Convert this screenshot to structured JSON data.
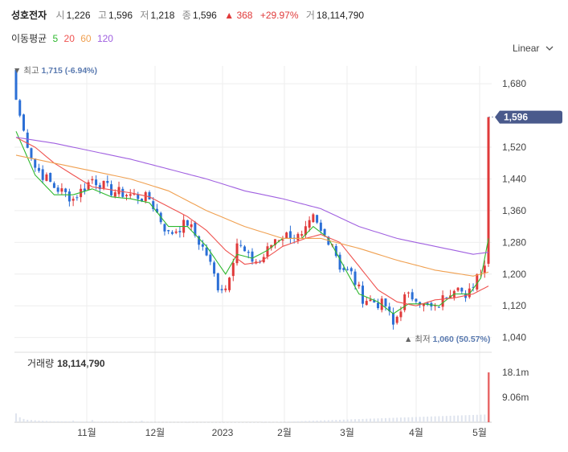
{
  "header": {
    "name": "성호전자",
    "open_label": "시",
    "open": "1,226",
    "high_label": "고",
    "high": "1,596",
    "low_label": "저",
    "low": "1,218",
    "close_label": "종",
    "close": "1,596",
    "change_arrow": "▲",
    "change": "368",
    "change_pct": "+29.97%",
    "volume_label": "거",
    "volume": "18,114,790"
  },
  "ma_legend": {
    "label": "이동평균",
    "items": [
      {
        "period": "5",
        "color": "#2eb82e"
      },
      {
        "period": "20",
        "color": "#ef5350"
      },
      {
        "period": "60",
        "color": "#f0a050"
      },
      {
        "period": "120",
        "color": "#a060e0"
      }
    ]
  },
  "scale_toggle": {
    "label": "Linear",
    "icon": "chevron-down-icon"
  },
  "colors": {
    "up": "#e03a3a",
    "down": "#2b6fd6",
    "price_tag": "#4a5a8c",
    "grid": "#eeeeee"
  },
  "chart_data": {
    "type": "candlestick",
    "y_axis": {
      "ticks": [
        1040,
        1120,
        1200,
        1280,
        1360,
        1440,
        1520,
        1600,
        1680
      ],
      "tick_labels": [
        "1,040",
        "1,120",
        "1,200",
        "1,280",
        "1,360",
        "1,440",
        "1,520",
        "1,600",
        "1,680"
      ],
      "range": [
        1040,
        1715
      ]
    },
    "x_axis": {
      "ticks": [
        "11월",
        "12월",
        "2023",
        "2월",
        "3월",
        "4월",
        "5월"
      ]
    },
    "last_price": {
      "value": 1596,
      "label": "1,596"
    },
    "high_marker": {
      "label": "최고",
      "value": "1,715",
      "pct": "(-6.94%)"
    },
    "low_marker": {
      "label": "최저",
      "value": "1,060",
      "pct": "(50.57%)"
    },
    "close_anchors": [
      [
        0,
        1640
      ],
      [
        2,
        1560
      ],
      [
        5,
        1470
      ],
      [
        10,
        1420
      ],
      [
        15,
        1390
      ],
      [
        20,
        1440
      ],
      [
        25,
        1410
      ],
      [
        30,
        1400
      ],
      [
        35,
        1390
      ],
      [
        40,
        1300
      ],
      [
        45,
        1330
      ],
      [
        50,
        1250
      ],
      [
        53,
        1170
      ],
      [
        55,
        1165
      ],
      [
        58,
        1280
      ],
      [
        61,
        1240
      ],
      [
        64,
        1230
      ],
      [
        68,
        1290
      ],
      [
        72,
        1300
      ],
      [
        75,
        1290
      ],
      [
        78,
        1340
      ],
      [
        80,
        1305
      ],
      [
        83,
        1280
      ],
      [
        85,
        1220
      ],
      [
        88,
        1200
      ],
      [
        91,
        1140
      ],
      [
        94,
        1130
      ],
      [
        97,
        1120
      ],
      [
        99,
        1070
      ],
      [
        102,
        1140
      ],
      [
        105,
        1145
      ],
      [
        107,
        1120
      ],
      [
        110,
        1110
      ],
      [
        113,
        1150
      ],
      [
        116,
        1180
      ],
      [
        118,
        1130
      ],
      [
        121,
        1200
      ],
      [
        123,
        1228
      ],
      [
        124,
        1596
      ]
    ],
    "ma_lines": [
      {
        "period": "5",
        "points": [
          [
            0,
            1560
          ],
          [
            5,
            1450
          ],
          [
            10,
            1400
          ],
          [
            15,
            1400
          ],
          [
            20,
            1415
          ],
          [
            25,
            1395
          ],
          [
            30,
            1390
          ],
          [
            35,
            1380
          ],
          [
            40,
            1320
          ],
          [
            45,
            1320
          ],
          [
            50,
            1270
          ],
          [
            55,
            1200
          ],
          [
            58,
            1250
          ],
          [
            62,
            1240
          ],
          [
            66,
            1260
          ],
          [
            70,
            1290
          ],
          [
            75,
            1290
          ],
          [
            78,
            1320
          ],
          [
            82,
            1290
          ],
          [
            86,
            1220
          ],
          [
            90,
            1150
          ],
          [
            95,
            1130
          ],
          [
            99,
            1100
          ],
          [
            103,
            1125
          ],
          [
            107,
            1125
          ],
          [
            111,
            1120
          ],
          [
            115,
            1150
          ],
          [
            119,
            1150
          ],
          [
            122,
            1190
          ],
          [
            124,
            1290
          ]
        ]
      },
      {
        "period": "20",
        "points": [
          [
            0,
            1545
          ],
          [
            5,
            1520
          ],
          [
            10,
            1480
          ],
          [
            15,
            1450
          ],
          [
            20,
            1420
          ],
          [
            30,
            1405
          ],
          [
            35,
            1395
          ],
          [
            40,
            1370
          ],
          [
            45,
            1345
          ],
          [
            50,
            1310
          ],
          [
            55,
            1260
          ],
          [
            60,
            1225
          ],
          [
            64,
            1230
          ],
          [
            70,
            1270
          ],
          [
            76,
            1290
          ],
          [
            80,
            1300
          ],
          [
            85,
            1280
          ],
          [
            90,
            1220
          ],
          [
            95,
            1160
          ],
          [
            100,
            1130
          ],
          [
            105,
            1120
          ],
          [
            110,
            1135
          ],
          [
            115,
            1140
          ],
          [
            120,
            1150
          ],
          [
            124,
            1170
          ]
        ]
      },
      {
        "period": "60",
        "points": [
          [
            0,
            1500
          ],
          [
            10,
            1480
          ],
          [
            20,
            1460
          ],
          [
            30,
            1440
          ],
          [
            40,
            1410
          ],
          [
            50,
            1360
          ],
          [
            60,
            1320
          ],
          [
            70,
            1290
          ],
          [
            80,
            1290
          ],
          [
            90,
            1265
          ],
          [
            100,
            1235
          ],
          [
            110,
            1210
          ],
          [
            120,
            1195
          ],
          [
            124,
            1205
          ]
        ]
      },
      {
        "period": "120",
        "points": [
          [
            0,
            1545
          ],
          [
            10,
            1530
          ],
          [
            20,
            1510
          ],
          [
            30,
            1490
          ],
          [
            40,
            1465
          ],
          [
            50,
            1440
          ],
          [
            60,
            1410
          ],
          [
            70,
            1390
          ],
          [
            80,
            1365
          ],
          [
            90,
            1320
          ],
          [
            100,
            1290
          ],
          [
            110,
            1270
          ],
          [
            120,
            1250
          ],
          [
            124,
            1255
          ]
        ]
      }
    ],
    "volume": {
      "title": "거래량",
      "latest": "18,114,790",
      "ticks": [
        {
          "label": "18.1m",
          "value": 18114790
        },
        {
          "label": "9.06m",
          "value": 9057395
        }
      ],
      "values": [
        3200000,
        1800000,
        1200000,
        900000,
        800000,
        700000,
        600000,
        500000,
        450000,
        400000,
        380000,
        360000,
        340000,
        320000,
        300000,
        600000,
        280000,
        260000,
        250000,
        240000,
        800000,
        230000,
        220000,
        210000,
        200000,
        190000,
        180000,
        170000,
        160000,
        150000,
        300000,
        140000,
        130000,
        600000,
        120000,
        110000,
        100000,
        95000,
        90000,
        85000,
        80000,
        75000,
        70000,
        65000,
        60000,
        200000,
        55000,
        50000,
        45000,
        40000,
        38000,
        36000,
        34000,
        32000,
        30000,
        28000,
        26000,
        24000,
        22000,
        20000,
        18000,
        16000,
        14000,
        12000,
        10000,
        200000,
        90000,
        120000,
        80000,
        150000,
        100000,
        200000,
        250000,
        300000,
        350000,
        400000,
        450000,
        500000,
        550000,
        600000,
        650000,
        700000,
        750000,
        800000,
        850000,
        900000,
        950000,
        1000000,
        1050000,
        1100000,
        1150000,
        1200000,
        1250000,
        1300000,
        1350000,
        1400000,
        1450000,
        1500000,
        1550000,
        1600000,
        1650000,
        1700000,
        1750000,
        1800000,
        1850000,
        1900000,
        1950000,
        2000000,
        2050000,
        2100000,
        2150000,
        2200000,
        2250000,
        2300000,
        2350000,
        2400000,
        2450000,
        2500000,
        2550000,
        2600000,
        2650000,
        2700000,
        2750000,
        2800000,
        18114790
      ]
    }
  }
}
